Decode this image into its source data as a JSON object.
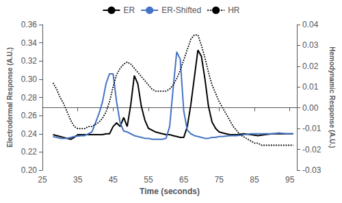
{
  "chart_data": {
    "type": "line",
    "xlabel": "Time (seconds)",
    "ylabel": "Electrodermal Response (A.U.)",
    "y2label": "Hemodynamic Response (A.U.)",
    "xlim": [
      25,
      97
    ],
    "xticks": [
      25,
      35,
      45,
      55,
      65,
      75,
      85,
      95
    ],
    "ylim": [
      0.2,
      0.36
    ],
    "yticks": [
      {
        "value": 0.2,
        "label": "0.20"
      },
      0.22,
      0.24,
      0.26,
      0.28,
      {
        "value": 0.3,
        "label": "0.30"
      },
      0.32,
      0.34,
      0.36
    ],
    "y2lim": [
      -0.03,
      0.04
    ],
    "y2ticks": [
      -0.03,
      -0.02,
      -0.01,
      {
        "value": 0.0,
        "label": "0.00"
      },
      0.01,
      0.02,
      0.03,
      0.04
    ],
    "grid": false,
    "series": [
      {
        "name": "ER",
        "color": "#000000",
        "line_style": "solid",
        "x": [
          28,
          30,
          32,
          33,
          34,
          35,
          36,
          37,
          38,
          39,
          40,
          41,
          42,
          43,
          44,
          45,
          46,
          47,
          48,
          49,
          50,
          51,
          52,
          53,
          54,
          55,
          56,
          57,
          58,
          59,
          60,
          61,
          62,
          63,
          64,
          65,
          66,
          67,
          68,
          69,
          70,
          71,
          72,
          73,
          74,
          75,
          76,
          77,
          78,
          80,
          82,
          84,
          86,
          88,
          90,
          92,
          94,
          96
        ],
        "values": [
          0.239,
          0.237,
          0.235,
          0.234,
          0.236,
          0.239,
          0.239,
          0.239,
          0.239,
          0.239,
          0.239,
          0.239,
          0.239,
          0.24,
          0.24,
          0.248,
          0.252,
          0.248,
          0.258,
          0.248,
          0.272,
          0.304,
          0.295,
          0.27,
          0.255,
          0.246,
          0.244,
          0.242,
          0.241,
          0.24,
          0.239,
          0.239,
          0.238,
          0.237,
          0.236,
          0.236,
          0.248,
          0.272,
          0.302,
          0.332,
          0.325,
          0.3,
          0.27,
          0.253,
          0.246,
          0.242,
          0.241,
          0.24,
          0.239,
          0.239,
          0.24,
          0.239,
          0.238,
          0.239,
          0.24,
          0.24,
          0.24,
          0.24
        ]
      },
      {
        "name": "ER-Shifted",
        "color": "#4472C4",
        "line_style": "solid",
        "x": [
          28,
          30,
          32,
          34,
          36,
          37,
          38,
          39,
          40,
          41,
          42,
          43,
          44,
          45,
          46,
          47,
          48,
          49,
          50,
          51,
          52,
          53,
          54,
          55,
          56,
          57,
          58,
          59,
          60,
          61,
          62,
          63,
          64,
          65,
          66,
          67,
          68,
          69,
          70,
          71,
          72,
          73,
          74,
          75,
          76,
          78,
          80,
          82,
          84,
          86,
          88,
          90,
          92,
          94,
          96
        ],
        "values": [
          0.237,
          0.235,
          0.235,
          0.237,
          0.238,
          0.238,
          0.24,
          0.242,
          0.252,
          0.262,
          0.275,
          0.295,
          0.306,
          0.306,
          0.275,
          0.252,
          0.243,
          0.242,
          0.24,
          0.238,
          0.237,
          0.236,
          0.235,
          0.235,
          0.234,
          0.234,
          0.234,
          0.234,
          0.235,
          0.248,
          0.29,
          0.33,
          0.322,
          0.265,
          0.244,
          0.24,
          0.238,
          0.237,
          0.236,
          0.235,
          0.235,
          0.236,
          0.236,
          0.237,
          0.237,
          0.238,
          0.238,
          0.239,
          0.24,
          0.24,
          0.24,
          0.24,
          0.241,
          0.24,
          0.24
        ]
      },
      {
        "name": "HR",
        "color": "#000000",
        "line_style": "dotted",
        "axis": "y2",
        "x": [
          28,
          29,
          30,
          31,
          32,
          33,
          34,
          35,
          36,
          37,
          38,
          39,
          40,
          41,
          42,
          43,
          44,
          45,
          46,
          47,
          48,
          49,
          50,
          51,
          52,
          53,
          54,
          55,
          56,
          57,
          58,
          59,
          60,
          61,
          62,
          63,
          64,
          65,
          66,
          67,
          68,
          69,
          70,
          71,
          72,
          73,
          74,
          75,
          76,
          77,
          78,
          79,
          80,
          81,
          82,
          83,
          84,
          85,
          86,
          87,
          88,
          89,
          90,
          91,
          92,
          93,
          94,
          95,
          96
        ],
        "values": [
          0.012,
          0.009,
          0.005,
          0.002,
          -0.002,
          -0.006,
          -0.009,
          -0.01,
          -0.01,
          -0.01,
          -0.009,
          -0.009,
          -0.008,
          -0.007,
          -0.005,
          -0.002,
          0.003,
          0.01,
          0.016,
          0.019,
          0.021,
          0.022,
          0.021,
          0.019,
          0.017,
          0.015,
          0.013,
          0.011,
          0.009,
          0.008,
          0.008,
          0.008,
          0.008,
          0.009,
          0.011,
          0.014,
          0.018,
          0.023,
          0.028,
          0.033,
          0.035,
          0.035,
          0.03,
          0.024,
          0.017,
          0.011,
          0.007,
          0.003,
          0.0,
          -0.003,
          -0.006,
          -0.009,
          -0.011,
          -0.013,
          -0.014,
          -0.015,
          -0.016,
          -0.017,
          -0.017,
          -0.018,
          -0.018,
          -0.018,
          -0.018,
          -0.018,
          -0.018,
          -0.018,
          -0.018,
          -0.018,
          -0.018
        ]
      }
    ]
  }
}
